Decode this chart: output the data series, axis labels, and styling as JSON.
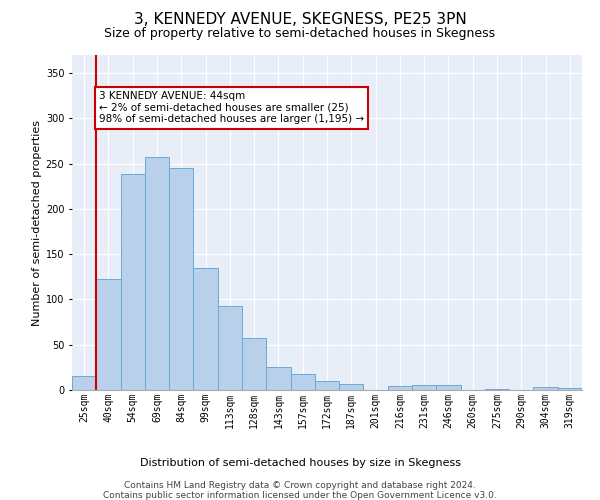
{
  "title": "3, KENNEDY AVENUE, SKEGNESS, PE25 3PN",
  "subtitle": "Size of property relative to semi-detached houses in Skegness",
  "xlabel": "Distribution of semi-detached houses by size in Skegness",
  "ylabel": "Number of semi-detached properties",
  "categories": [
    "25sqm",
    "40sqm",
    "54sqm",
    "69sqm",
    "84sqm",
    "99sqm",
    "113sqm",
    "128sqm",
    "143sqm",
    "157sqm",
    "172sqm",
    "187sqm",
    "201sqm",
    "216sqm",
    "231sqm",
    "246sqm",
    "260sqm",
    "275sqm",
    "290sqm",
    "304sqm",
    "319sqm"
  ],
  "values": [
    15,
    123,
    239,
    257,
    245,
    135,
    93,
    57,
    25,
    18,
    10,
    7,
    0,
    4,
    5,
    5,
    0,
    1,
    0,
    3,
    2
  ],
  "bar_color": "#b8d0ea",
  "bar_edge_color": "#6aaad4",
  "redline_color": "#cc0000",
  "annotation_text": "3 KENNEDY AVENUE: 44sqm\n← 2% of semi-detached houses are smaller (25)\n98% of semi-detached houses are larger (1,195) →",
  "annotation_box_color": "#ffffff",
  "annotation_box_edge": "#cc0000",
  "ylim": [
    0,
    370
  ],
  "yticks": [
    0,
    50,
    100,
    150,
    200,
    250,
    300,
    350
  ],
  "footer1": "Contains HM Land Registry data © Crown copyright and database right 2024.",
  "footer2": "Contains public sector information licensed under the Open Government Licence v3.0.",
  "plot_bg_color": "#e8eef8",
  "title_fontsize": 11,
  "subtitle_fontsize": 9,
  "axis_label_fontsize": 8,
  "tick_fontsize": 7,
  "annotation_fontsize": 7.5,
  "footer_fontsize": 6.5
}
